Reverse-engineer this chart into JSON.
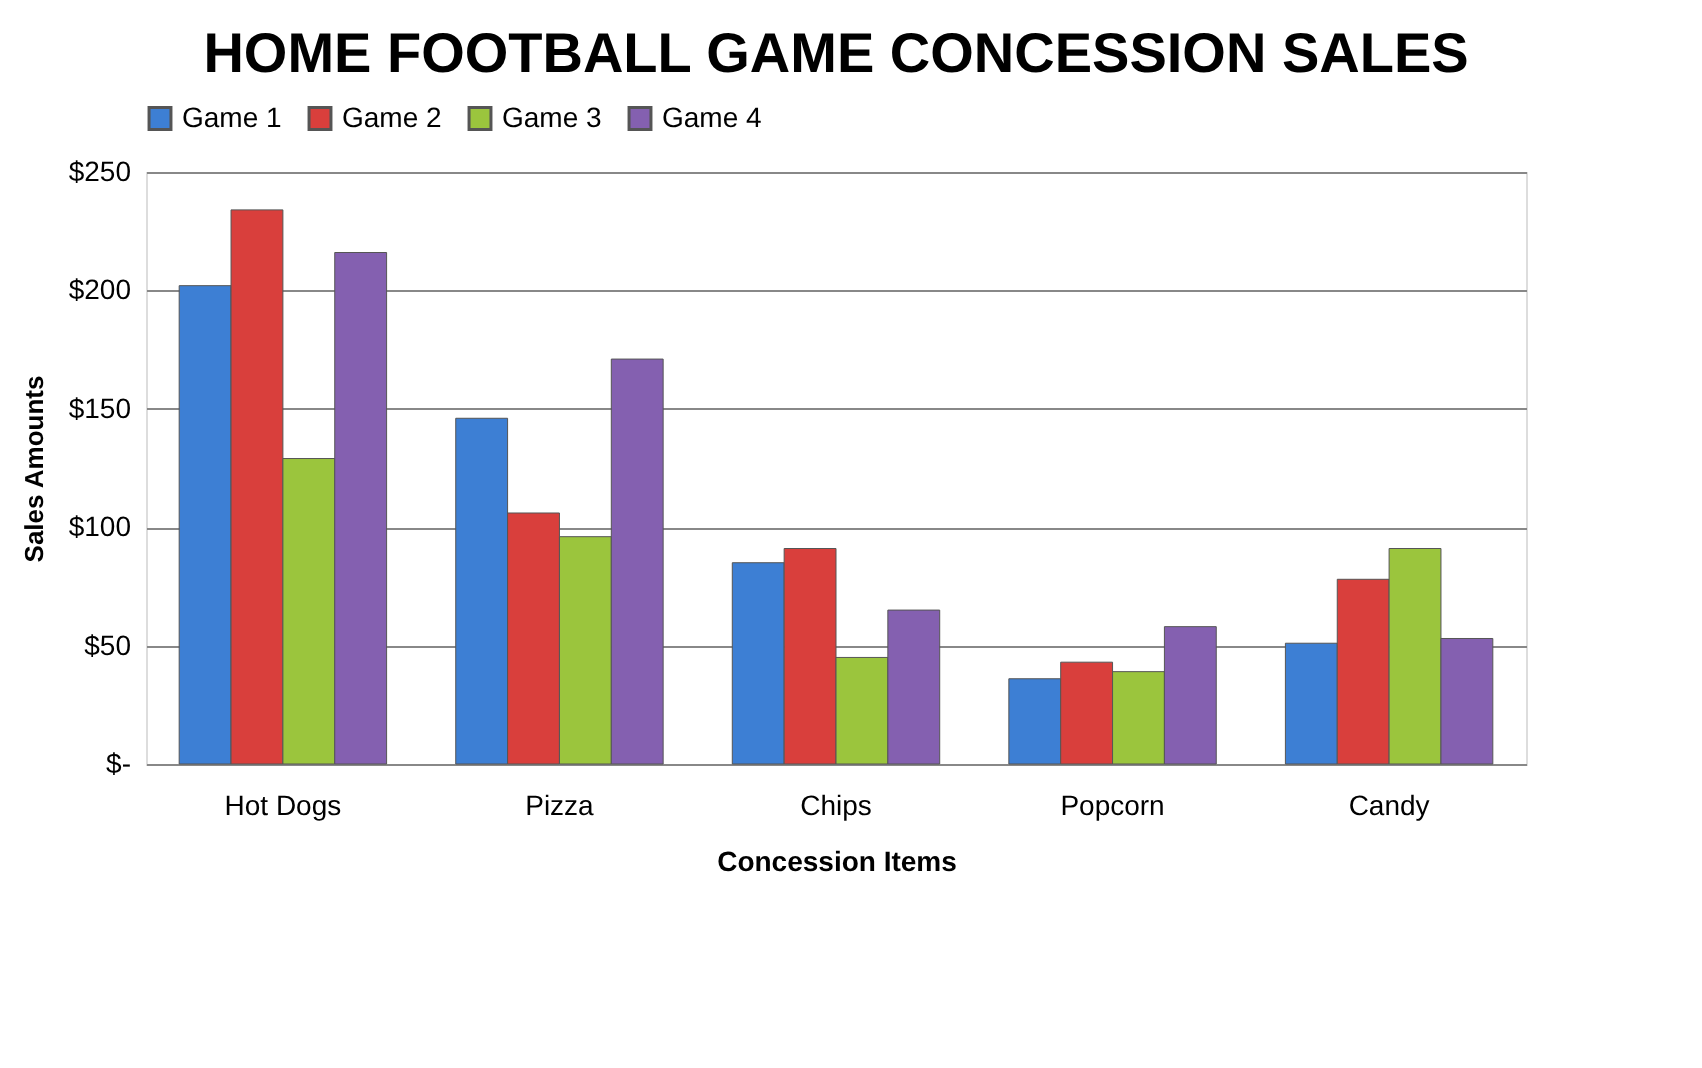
{
  "chart_data": {
    "type": "bar",
    "title": "HOME FOOTBALL GAME CONCESSION SALES",
    "xlabel": "Concession Items",
    "ylabel": "Sales Amounts",
    "categories": [
      "Hot Dogs",
      "Pizza",
      "Chips",
      "Popcorn",
      "Candy"
    ],
    "series": [
      {
        "name": "Game 1",
        "color": "#3d7fd4",
        "values": [
          202,
          146,
          85,
          36,
          51
        ]
      },
      {
        "name": "Game 2",
        "color": "#d93f3c",
        "values": [
          234,
          106,
          91,
          43,
          78
        ]
      },
      {
        "name": "Game 3",
        "color": "#9bc53d",
        "values": [
          129,
          96,
          45,
          39,
          91
        ]
      },
      {
        "name": "Game 4",
        "color": "#8460b0",
        "values": [
          216,
          171,
          65,
          58,
          53
        ]
      }
    ],
    "ylim": [
      0,
      250
    ],
    "yticks": [
      {
        "value": 0,
        "label": "$-"
      },
      {
        "value": 50,
        "label": "$50"
      },
      {
        "value": 100,
        "label": "$100"
      },
      {
        "value": 150,
        "label": "$150"
      },
      {
        "value": 200,
        "label": "$200"
      },
      {
        "value": 250,
        "label": "$250"
      }
    ],
    "grid": "y",
    "legend": "top"
  }
}
